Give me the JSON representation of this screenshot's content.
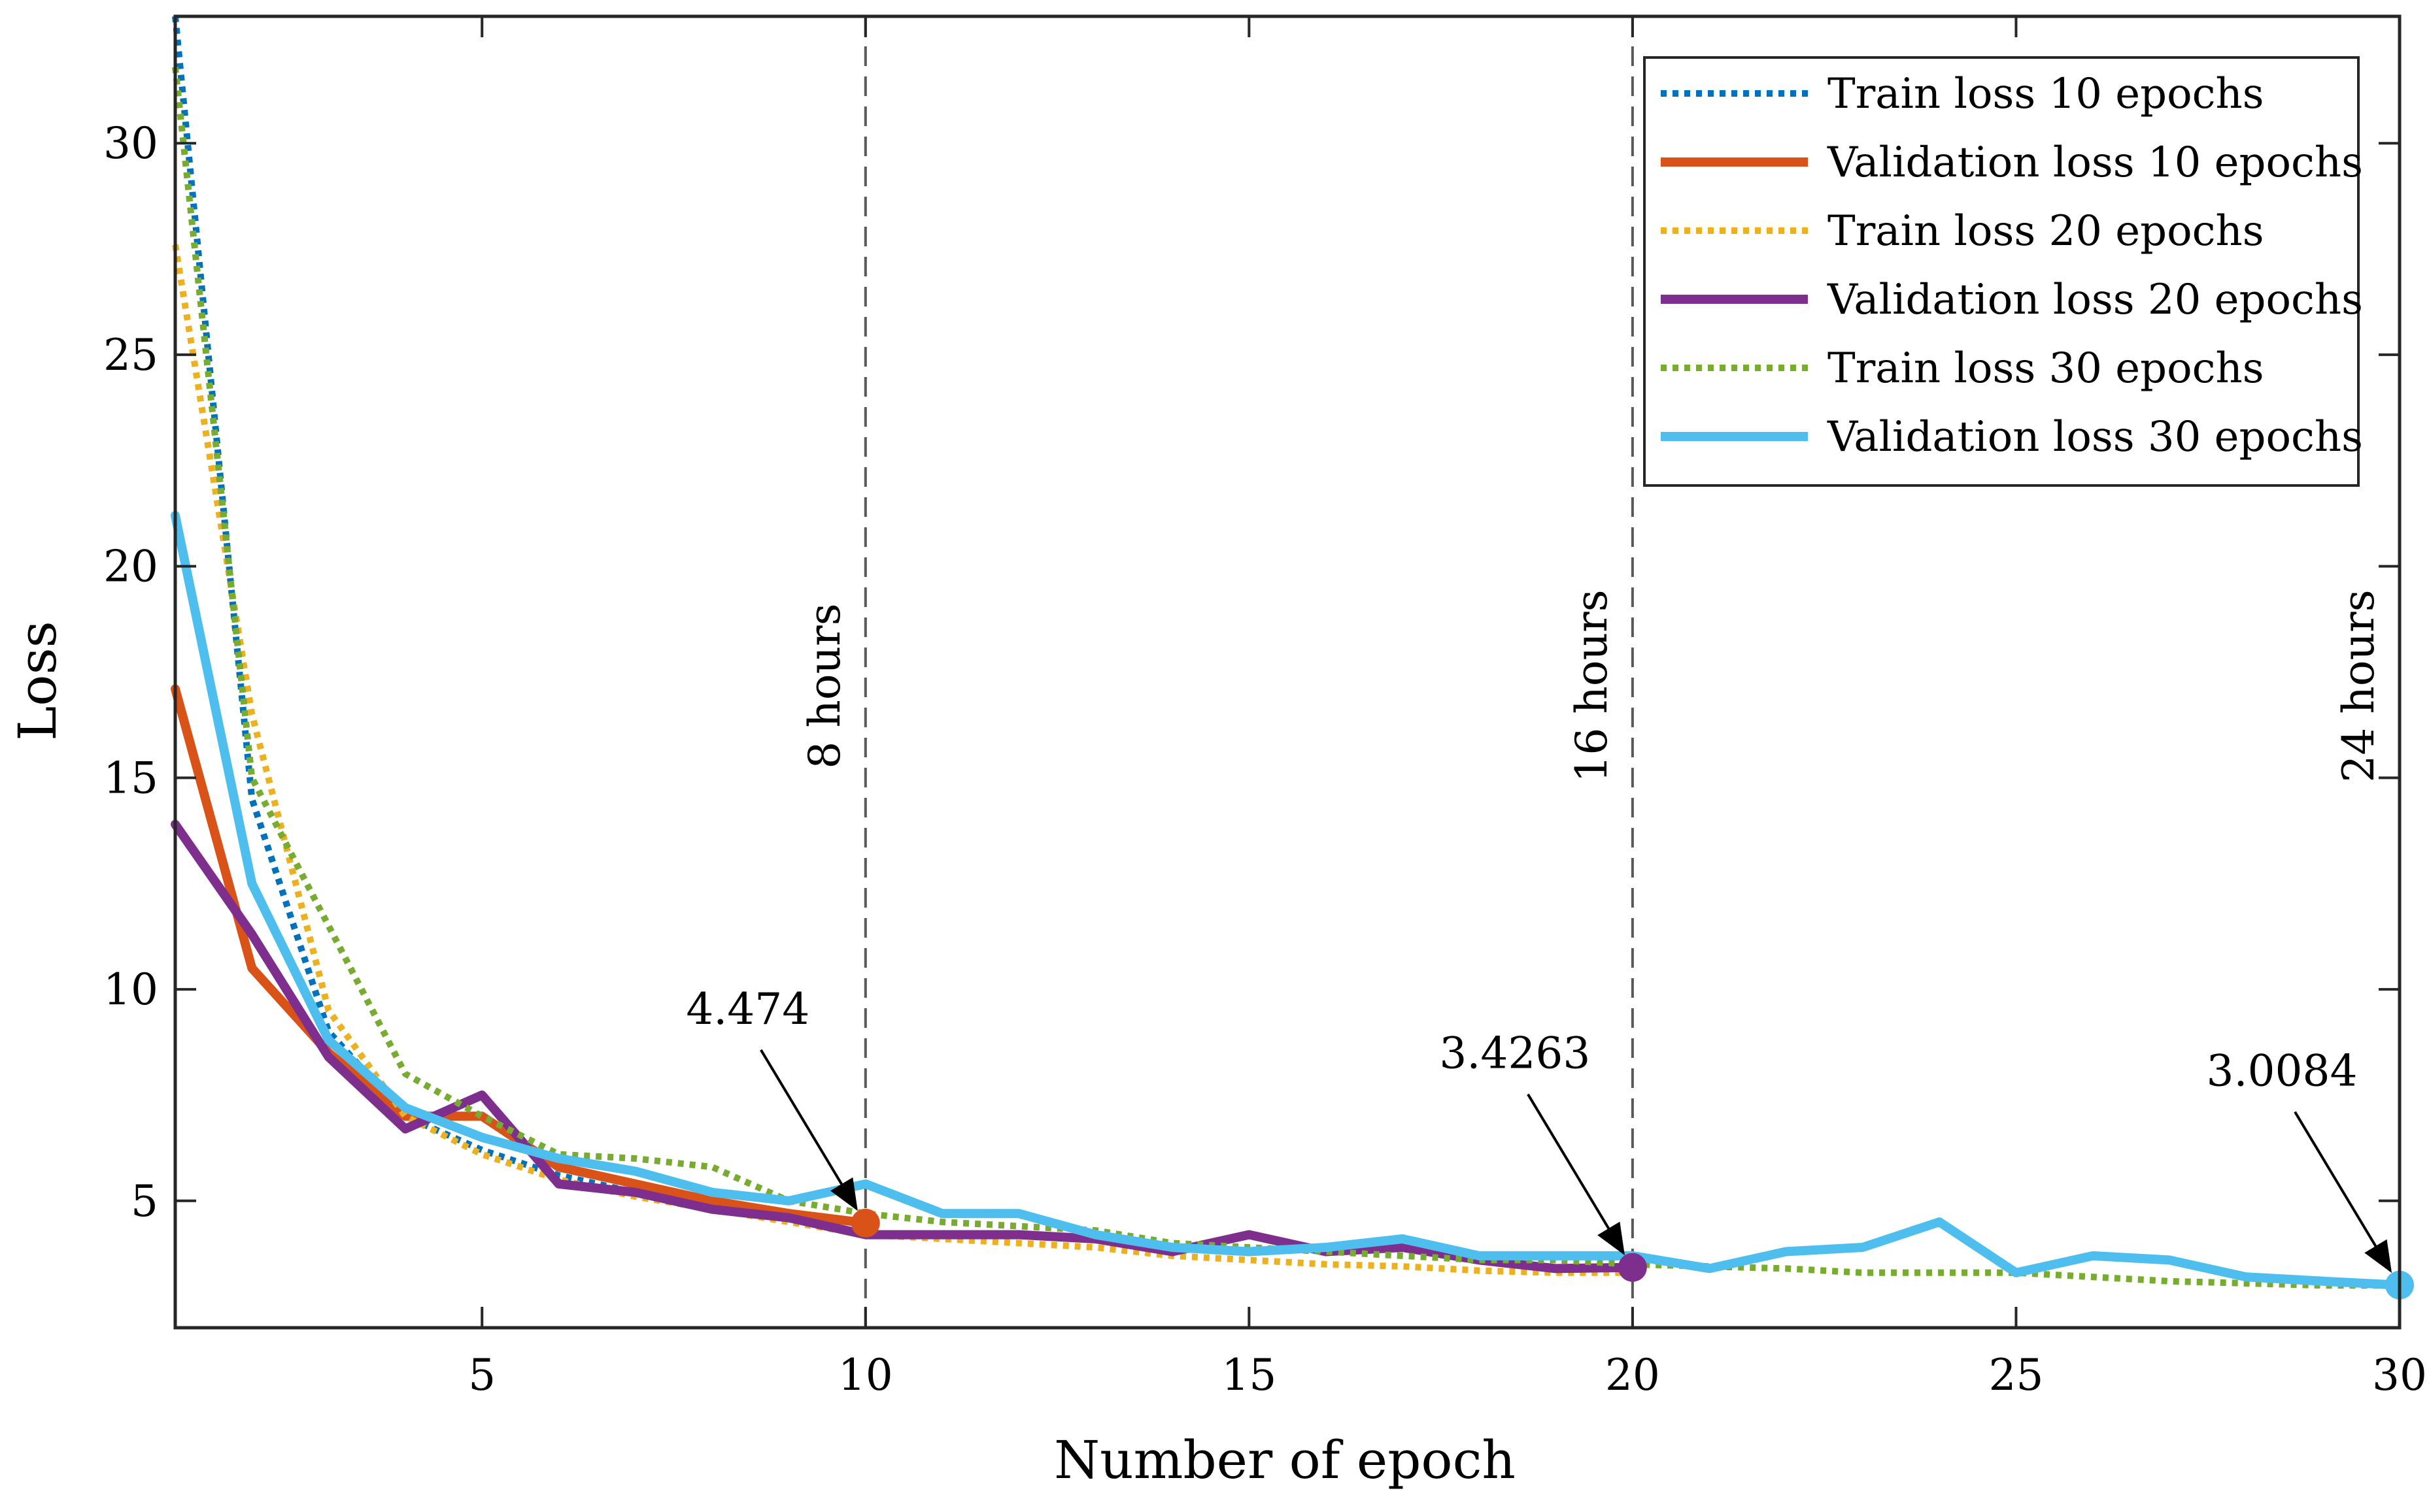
{
  "chart_data": {
    "type": "line",
    "title": "",
    "xlabel": "Number of epoch",
    "ylabel": "Loss",
    "xlim": [
      1,
      30
    ],
    "ylim": [
      2.0,
      33.0
    ],
    "xticks": [
      5,
      10,
      15,
      20,
      25,
      30
    ],
    "yticks": [
      5,
      10,
      15,
      20,
      25,
      30
    ],
    "grid": false,
    "legend_position": "top-right",
    "series": [
      {
        "name": "Train loss 10 epochs",
        "style": "dotted",
        "color": "#0072BD",
        "x": [
          1,
          2,
          3,
          4,
          5,
          6,
          7,
          8,
          9,
          10
        ],
        "y": [
          33.0,
          14.5,
          9.0,
          7.0,
          6.2,
          5.6,
          5.2,
          4.9,
          4.7,
          4.5
        ]
      },
      {
        "name": "Validation loss 10 epochs",
        "style": "solid",
        "color": "#D95319",
        "x": [
          1,
          2,
          3,
          4,
          5,
          6,
          7,
          8,
          9,
          10
        ],
        "y": [
          17.1,
          10.5,
          8.5,
          7.0,
          7.0,
          5.8,
          5.4,
          5.0,
          4.7,
          4.474
        ]
      },
      {
        "name": "Train loss 20 epochs",
        "style": "dotted",
        "color": "#EDB120",
        "x": [
          1,
          2,
          3,
          4,
          5,
          6,
          7,
          8,
          9,
          10,
          11,
          12,
          13,
          14,
          15,
          16,
          17,
          18,
          19,
          20
        ],
        "y": [
          27.6,
          16.5,
          9.5,
          7.0,
          6.1,
          5.5,
          5.1,
          4.8,
          4.5,
          4.2,
          4.1,
          4.0,
          3.9,
          3.7,
          3.6,
          3.5,
          3.45,
          3.35,
          3.3,
          3.3
        ]
      },
      {
        "name": "Validation loss 20 epochs",
        "style": "solid",
        "color": "#7E2F8E",
        "x": [
          1,
          2,
          3,
          4,
          5,
          6,
          7,
          8,
          9,
          10,
          11,
          12,
          13,
          14,
          15,
          16,
          17,
          18,
          19,
          20
        ],
        "y": [
          13.9,
          11.3,
          8.4,
          6.7,
          7.5,
          5.4,
          5.2,
          4.8,
          4.6,
          4.2,
          4.2,
          4.2,
          4.1,
          3.8,
          4.2,
          3.8,
          3.9,
          3.6,
          3.4,
          3.4263
        ]
      },
      {
        "name": "Train loss 30 epochs",
        "style": "dotted",
        "color": "#77AC30",
        "x": [
          1,
          2,
          3,
          4,
          5,
          6,
          7,
          8,
          9,
          10,
          11,
          12,
          13,
          14,
          15,
          16,
          17,
          18,
          19,
          20,
          21,
          22,
          23,
          24,
          25,
          26,
          27,
          28,
          29,
          30
        ],
        "y": [
          31.8,
          15.0,
          11.5,
          8.0,
          7.0,
          6.1,
          6.0,
          5.8,
          5.0,
          4.7,
          4.5,
          4.4,
          4.3,
          4.0,
          3.9,
          3.8,
          3.7,
          3.6,
          3.6,
          3.5,
          3.45,
          3.4,
          3.3,
          3.3,
          3.3,
          3.2,
          3.1,
          3.05,
          3.0,
          3.0
        ]
      },
      {
        "name": "Validation loss 30 epochs",
        "style": "solid",
        "color": "#4DBEEE",
        "x": [
          1,
          2,
          3,
          4,
          5,
          6,
          7,
          8,
          9,
          10,
          11,
          12,
          13,
          14,
          15,
          16,
          17,
          18,
          19,
          20,
          21,
          22,
          23,
          24,
          25,
          26,
          27,
          28,
          29,
          30
        ],
        "y": [
          21.2,
          12.5,
          8.8,
          7.2,
          6.5,
          6.0,
          5.7,
          5.2,
          5.0,
          5.4,
          4.7,
          4.7,
          4.2,
          3.9,
          3.8,
          3.9,
          4.1,
          3.7,
          3.7,
          3.7,
          3.4,
          3.8,
          3.9,
          4.5,
          3.3,
          3.7,
          3.6,
          3.2,
          3.1,
          3.0084
        ]
      }
    ],
    "vlines": [
      {
        "x": 10,
        "label": "8 hours"
      },
      {
        "x": 20,
        "label": "16 hours"
      },
      {
        "x": 30,
        "label": "24 hours"
      }
    ],
    "annotations": [
      {
        "label": "4.474",
        "x": 10,
        "y": 4.474,
        "color": "#D95319"
      },
      {
        "label": "3.4263",
        "x": 20,
        "y": 3.4263,
        "color": "#7E2F8E"
      },
      {
        "label": "3.0084",
        "x": 30,
        "y": 3.0084,
        "color": "#4DBEEE"
      }
    ]
  }
}
